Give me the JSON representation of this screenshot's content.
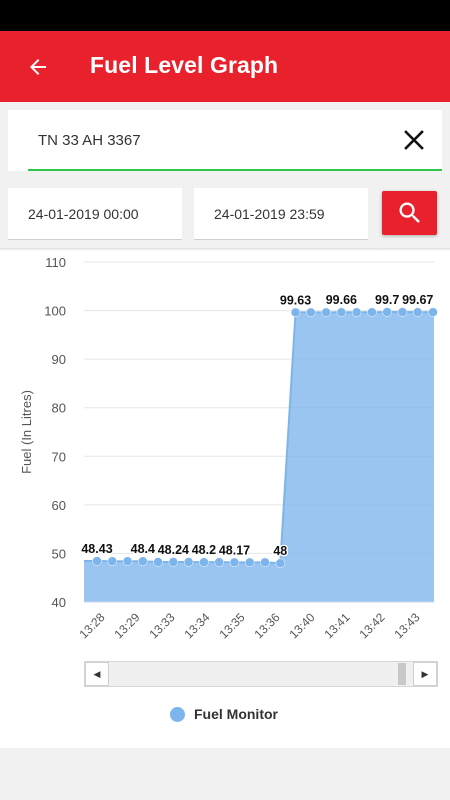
{
  "app_bar": {
    "title": "Fuel Level Graph",
    "color": "#e9212c"
  },
  "vehicle": {
    "number": "TN 33 AH 3367"
  },
  "dates": {
    "from": "24-01-2019 00:00",
    "to": "24-01-2019 23:59"
  },
  "icons": {
    "back": "arrow-left-icon",
    "clear": "close-icon",
    "search": "search-icon"
  },
  "chart_data": {
    "type": "area",
    "title": "",
    "xlabel": "",
    "ylabel": "Fuel (In Litres)",
    "ylim": [
      40,
      110
    ],
    "yticks": [
      40,
      50,
      60,
      70,
      80,
      90,
      100,
      110
    ],
    "grid": true,
    "legend_placement": "bottom-center",
    "series_color": "#7cb5ec",
    "x_tick_labels": [
      "13:28",
      "13:29",
      "13:33",
      "13:34",
      "13:35",
      "13:36",
      "13:40",
      "13:41",
      "13:42",
      "13:43"
    ],
    "series": [
      {
        "name": "Fuel Monitor",
        "values": [
          48.43,
          48.4,
          48.4,
          48.4,
          48.24,
          48.24,
          48.24,
          48.2,
          48.2,
          48.17,
          48.17,
          48.17,
          48,
          99.63,
          99.63,
          99.63,
          99.66,
          99.66,
          99.66,
          99.7,
          99.7,
          99.67,
          99.67
        ]
      }
    ],
    "data_labels": [
      {
        "index": 0,
        "text": "48.43"
      },
      {
        "index": 3,
        "text": "48.4"
      },
      {
        "index": 5,
        "text": "48.24"
      },
      {
        "index": 7,
        "text": "48.2"
      },
      {
        "index": 9,
        "text": "48.17"
      },
      {
        "index": 12,
        "text": "48"
      },
      {
        "index": 13,
        "text": "99.63"
      },
      {
        "index": 16,
        "text": "99.66"
      },
      {
        "index": 19,
        "text": "99.7"
      },
      {
        "index": 21,
        "text": "99.67"
      }
    ]
  }
}
